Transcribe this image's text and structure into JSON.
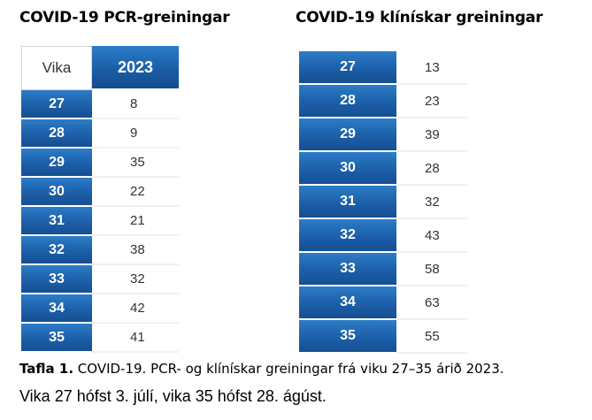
{
  "titles": {
    "pcr": "COVID-19 PCR-greiningar",
    "clinical": "COVID-19 klínískar greiningar"
  },
  "pcr_table": {
    "header_week": "Vika",
    "header_year": "2023",
    "rows": [
      {
        "week": "27",
        "value": "8"
      },
      {
        "week": "28",
        "value": "9"
      },
      {
        "week": "29",
        "value": "35"
      },
      {
        "week": "30",
        "value": "22"
      },
      {
        "week": "31",
        "value": "21"
      },
      {
        "week": "32",
        "value": "38"
      },
      {
        "week": "33",
        "value": "32"
      },
      {
        "week": "34",
        "value": "42"
      },
      {
        "week": "35",
        "value": "41"
      }
    ]
  },
  "clinical_table": {
    "rows": [
      {
        "week": "27",
        "value": "13"
      },
      {
        "week": "28",
        "value": "23"
      },
      {
        "week": "29",
        "value": "39"
      },
      {
        "week": "30",
        "value": "28"
      },
      {
        "week": "31",
        "value": "32"
      },
      {
        "week": "32",
        "value": "43"
      },
      {
        "week": "33",
        "value": "58"
      },
      {
        "week": "34",
        "value": "63"
      },
      {
        "week": "35",
        "value": "55"
      }
    ]
  },
  "caption": {
    "label": "Tafla 1.",
    "text": " COVID-19. PCR- og klínískar greiningar frá viku 27–35 árið 2023.",
    "line2": "Vika 27 hófst 3. júlí, vika 35 hófst 28. ágúst."
  },
  "colors": {
    "header_blue": "#1c5fa8",
    "cell_text": "#333333"
  }
}
